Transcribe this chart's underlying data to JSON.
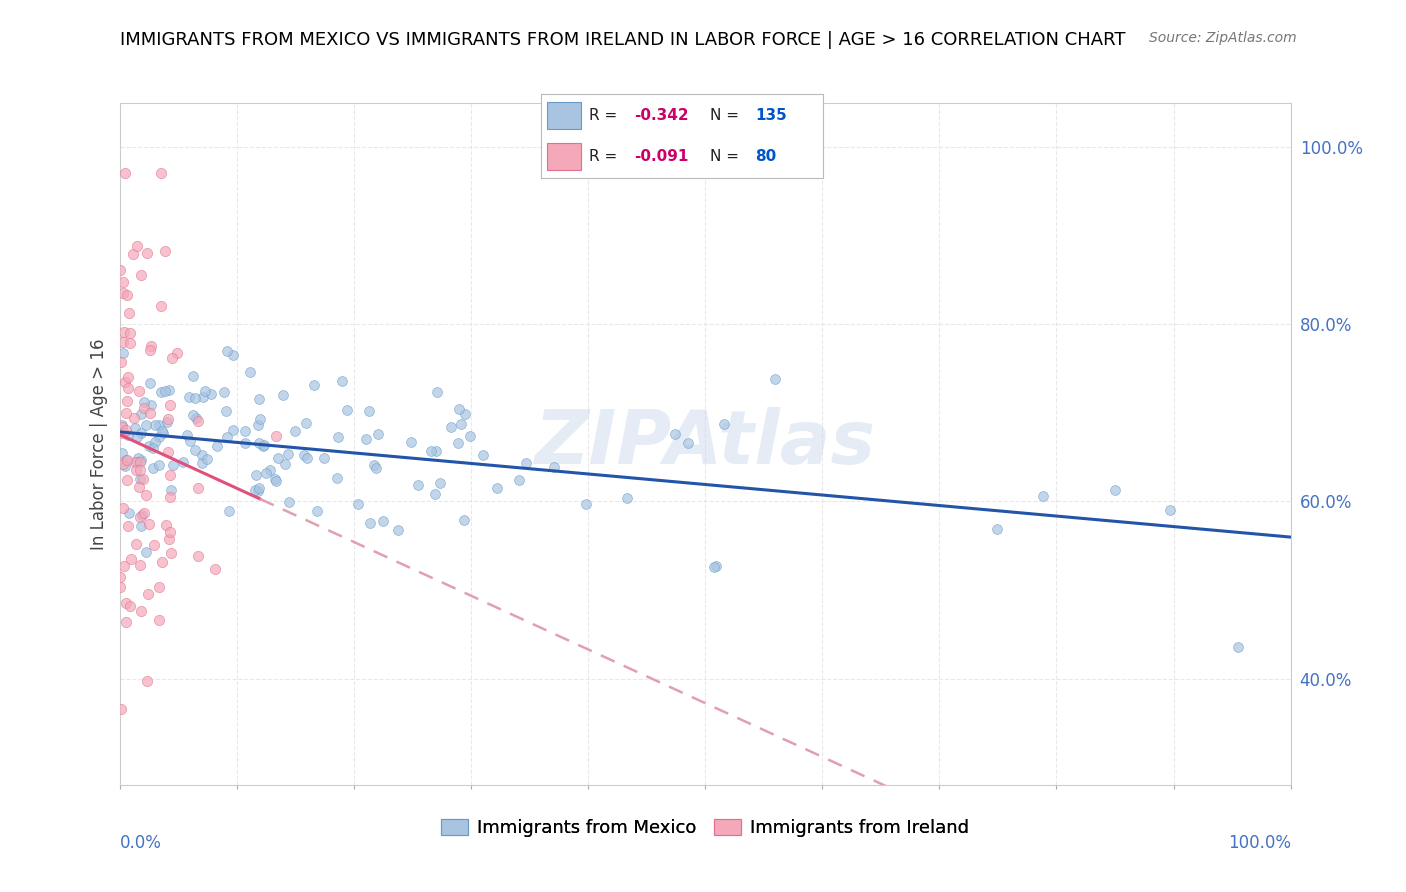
{
  "title": "IMMIGRANTS FROM MEXICO VS IMMIGRANTS FROM IRELAND IN LABOR FORCE | AGE > 16 CORRELATION CHART",
  "source": "Source: ZipAtlas.com",
  "ylabel": "In Labor Force | Age > 16",
  "mexico_R": -0.342,
  "mexico_N": 135,
  "ireland_R": -0.091,
  "ireland_N": 80,
  "mexico_color": "#a8c4e0",
  "mexico_edge_color": "#6699cc",
  "ireland_color": "#f4a8b8",
  "ireland_edge_color": "#e07090",
  "mexico_line_color": "#2255aa",
  "ireland_line_solid_color": "#e0507a",
  "ireland_line_dash_color": "#e0a0b0",
  "watermark": "ZIPAtlas",
  "background_color": "#ffffff",
  "grid_color": "#e8e8e8",
  "grid_style": "--",
  "ytick_color": "#4472c4",
  "xtick_color": "#4472c4"
}
